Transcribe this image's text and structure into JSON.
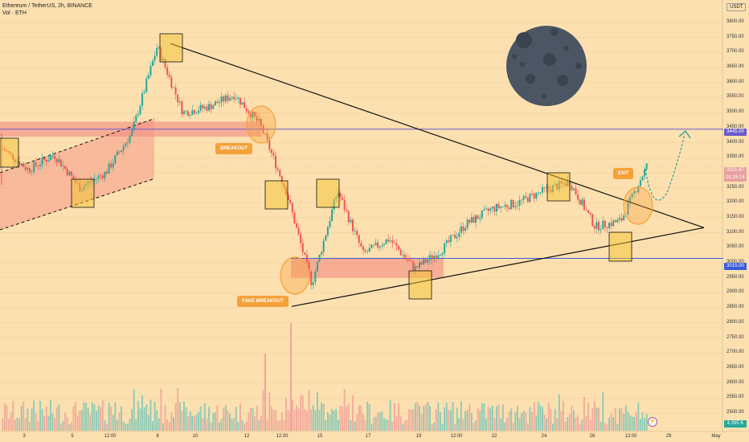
{
  "header": {
    "symbol_line": "Ethereum / TetherUS, 2h, BINANCE",
    "volume_line": "Vol · ETH"
  },
  "axis": {
    "currency": "USDT",
    "y_ticks": [
      "3800.00",
      "3750.00",
      "3700.00",
      "3650.00",
      "3600.00",
      "3550.00",
      "3500.00",
      "3450.00",
      "3400.00",
      "3350.00",
      "3300.00",
      "3250.00",
      "3200.00",
      "3150.00",
      "3100.00",
      "3050.00",
      "3000.00",
      "2950.00",
      "2900.00",
      "2850.00",
      "2800.00",
      "2750.00",
      "2700.00",
      "2650.00",
      "2600.00",
      "2550.00",
      "2500.00"
    ],
    "x_ticks": [
      "3",
      "5",
      "12:00",
      "8",
      "10",
      "12",
      "12:00",
      "15",
      "17",
      "19",
      "12:00",
      "22",
      "24",
      "26",
      "12:00",
      "29",
      "May"
    ]
  },
  "price_tags": {
    "resistance": "3445.00",
    "current_top": "3321.47",
    "current_bottom": "01:26:14",
    "support": "3015.00",
    "volume": "4.395 K"
  },
  "annotations": {
    "breakout": "BREAKOUT",
    "fake_breakout": "FAKE BREAKOUT",
    "exit": "EXIT"
  },
  "colors": {
    "background": "#fde0b0",
    "up_candle": "#26a69a",
    "down_candle": "#ef5350",
    "resistance_line": "#6a5acd",
    "support_line": "#3b5bdb",
    "red_zone": "#f28b82",
    "marker": "#f4a13a",
    "moon": "#4b5563",
    "projection": "#2e9e8f"
  },
  "chart_data": {
    "type": "candlestick",
    "title": "Ethereum / TetherUS, 2h, BINANCE",
    "ylabel": "USDT",
    "ylim": [
      2500,
      3800
    ],
    "levels": {
      "resistance": 3445,
      "support": 3015
    },
    "pattern": "symmetrical triangle",
    "path": [
      {
        "x": "Apr 2",
        "price": 3380
      },
      {
        "x": "Apr 3",
        "price": 3310
      },
      {
        "x": "Apr 4",
        "price": 3360
      },
      {
        "x": "Apr 5",
        "price": 3250
      },
      {
        "x": "Apr 6",
        "price": 3300
      },
      {
        "x": "Apr 7",
        "price": 3430
      },
      {
        "x": "Apr 8",
        "price": 3720
      },
      {
        "x": "Apr 9",
        "price": 3500
      },
      {
        "x": "Apr 10",
        "price": 3520
      },
      {
        "x": "Apr 11",
        "price": 3560
      },
      {
        "x": "Apr 12",
        "price": 3460
      },
      {
        "x": "Apr 13",
        "price": 3240
      },
      {
        "x": "Apr 14",
        "price": 2930
      },
      {
        "x": "Apr 15",
        "price": 3240
      },
      {
        "x": "Apr 16",
        "price": 3030
      },
      {
        "x": "Apr 17",
        "price": 3080
      },
      {
        "x": "Apr 18",
        "price": 2980
      },
      {
        "x": "Apr 19",
        "price": 3040
      },
      {
        "x": "Apr 20",
        "price": 3130
      },
      {
        "x": "Apr 21",
        "price": 3180
      },
      {
        "x": "Apr 22",
        "price": 3200
      },
      {
        "x": "Apr 23",
        "price": 3240
      },
      {
        "x": "Apr 24",
        "price": 3270
      },
      {
        "x": "Apr 25",
        "price": 3120
      },
      {
        "x": "Apr 26",
        "price": 3140
      },
      {
        "x": "Apr 27",
        "price": 3321.47
      }
    ],
    "projection": [
      3250,
      3445
    ]
  }
}
